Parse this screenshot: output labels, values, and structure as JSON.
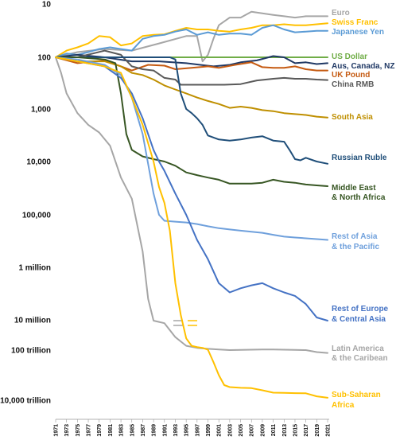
{
  "chart_data": {
    "type": "line",
    "title": "",
    "xlabel": "",
    "ylabel": "",
    "yscale": "log-inverted",
    "grid": false,
    "legend": "direct labels at right end of each line",
    "x_ticks": [
      "1971",
      "1973",
      "1975",
      "1977",
      "1979",
      "1981",
      "1983",
      "1985",
      "1987",
      "1989",
      "1991",
      "1993",
      "1995",
      "1997",
      "1999",
      "2001",
      "2003",
      "2005",
      "2007",
      "2009",
      "2011",
      "2013",
      "2015",
      "2017",
      "2019",
      "2021"
    ],
    "y_ticks": [
      {
        "label": "10",
        "value": 10
      },
      {
        "label": "100",
        "value": 100
      },
      {
        "label": "1,000",
        "value": 1000
      },
      {
        "label": "10,000",
        "value": 10000
      },
      {
        "label": "100,000",
        "value": 100000
      },
      {
        "label": "1 million",
        "value": 1000000
      },
      {
        "label": "10 million",
        "value": 10000000
      },
      {
        "label": "100 trillion",
        "value": 100000000000000.0
      },
      {
        "label": "10,000 trillion",
        "value": 1e+16
      }
    ],
    "axis_break_between": [
      "10 million",
      "100 trillion"
    ],
    "series": [
      {
        "name": "Euro",
        "color": "#a6a6a6",
        "x": [
          1971,
          1975,
          1980,
          1985,
          1990,
          1995,
          1997,
          1998,
          1999,
          2000,
          2001,
          2003,
          2005,
          2007,
          2009,
          2011,
          2013,
          2015,
          2017,
          2019,
          2021
        ],
        "y": [
          100,
          80,
          70,
          75,
          55,
          40,
          40,
          120,
          90,
          45,
          25,
          18,
          18,
          14,
          15,
          16,
          17,
          18,
          17,
          17,
          17
        ]
      },
      {
        "name": "Swiss Franc",
        "color": "#ffc000",
        "x": [
          1971,
          1973,
          1975,
          1977,
          1979,
          1981,
          1983,
          1985,
          1987,
          1989,
          1991,
          1993,
          1995,
          1997,
          1999,
          2001,
          2003,
          2005,
          2007,
          2009,
          2011,
          2013,
          2015,
          2017,
          2019,
          2021
        ],
        "y": [
          100,
          75,
          65,
          55,
          40,
          42,
          60,
          55,
          40,
          38,
          37,
          32,
          28,
          30,
          30,
          32,
          33,
          30,
          28,
          25,
          25,
          24,
          25,
          25,
          24,
          23
        ]
      },
      {
        "name": "Japanese Yen",
        "color": "#5b9bd5",
        "x": [
          1971,
          1973,
          1975,
          1977,
          1979,
          1981,
          1983,
          1985,
          1987,
          1989,
          1991,
          1993,
          1995,
          1997,
          1999,
          2001,
          2003,
          2005,
          2007,
          2009,
          2011,
          2013,
          2015,
          2017,
          2019,
          2021
        ],
        "y": [
          100,
          85,
          90,
          80,
          70,
          65,
          70,
          75,
          45,
          40,
          38,
          33,
          30,
          38,
          34,
          38,
          36,
          36,
          38,
          28,
          25,
          30,
          34,
          33,
          32,
          32
        ]
      },
      {
        "name": "US Dollar",
        "color": "#70ad47",
        "x": [
          1971,
          2021
        ],
        "y": [
          100,
          100
        ]
      },
      {
        "name": "Aus, Canada, NZ",
        "color": "#1f3864",
        "x": [
          1971,
          1975,
          1980,
          1985,
          1990,
          1995,
          2000,
          2003,
          2005,
          2008,
          2011,
          2013,
          2015,
          2017,
          2019,
          2021
        ],
        "y": [
          100,
          90,
          100,
          120,
          120,
          130,
          150,
          140,
          125,
          115,
          95,
          100,
          130,
          125,
          135,
          130
        ]
      },
      {
        "name": "UK Pound",
        "color": "#c55a11",
        "x": [
          1971,
          1975,
          1980,
          1983,
          1985,
          1988,
          1991,
          1993,
          1996,
          1999,
          2001,
          2004,
          2007,
          2009,
          2011,
          2013,
          2015,
          2017,
          2019,
          2021
        ],
        "y": [
          100,
          130,
          115,
          150,
          180,
          140,
          145,
          170,
          160,
          150,
          160,
          140,
          125,
          155,
          160,
          160,
          150,
          170,
          180,
          180
        ]
      },
      {
        "name": "China RMB",
        "color": "#595959",
        "x": [
          1971,
          1975,
          1980,
          1983,
          1985,
          1987,
          1989,
          1991,
          1993,
          1994,
          1996,
          1999,
          2002,
          2005,
          2008,
          2011,
          2013,
          2015,
          2017,
          2019,
          2021
        ],
        "y": [
          100,
          100,
          75,
          90,
          150,
          170,
          180,
          250,
          270,
          340,
          340,
          340,
          340,
          330,
          280,
          260,
          250,
          260,
          260,
          270,
          275
        ]
      },
      {
        "name": "South Asia",
        "color": "#bf8f00",
        "x": [
          1971,
          1975,
          1980,
          1983,
          1985,
          1987,
          1989,
          1991,
          1993,
          1995,
          1997,
          1999,
          2001,
          2003,
          2005,
          2007,
          2009,
          2011,
          2013,
          2015,
          2017,
          2019,
          2021
        ],
        "y": [
          100,
          120,
          120,
          150,
          200,
          220,
          270,
          350,
          420,
          500,
          600,
          700,
          800,
          950,
          900,
          950,
          1050,
          1100,
          1200,
          1250,
          1300,
          1400,
          1450
        ]
      },
      {
        "name": "Russian Ruble",
        "color": "#1f4e79",
        "x": [
          1971,
          1975,
          1980,
          1985,
          1990,
          1992,
          1993,
          1994,
          1995,
          1996,
          1997,
          1998,
          1999,
          2001,
          2003,
          2005,
          2007,
          2009,
          2011,
          2013,
          2014,
          2015,
          2016,
          2017,
          2019,
          2021
        ],
        "y": [
          100,
          100,
          100,
          100,
          100,
          100,
          110,
          500,
          1000,
          1200,
          1500,
          2000,
          3200,
          3800,
          4000,
          3800,
          3500,
          3300,
          4000,
          4200,
          6000,
          9000,
          9500,
          8500,
          10000,
          11000
        ]
      },
      {
        "name": "Middle East & North Africa",
        "color": "#375623",
        "x": [
          1971,
          1975,
          1980,
          1982,
          1983,
          1984,
          1985,
          1987,
          1989,
          1991,
          1993,
          1995,
          1997,
          1999,
          2001,
          2003,
          2005,
          2007,
          2009,
          2011,
          2013,
          2015,
          2017,
          2019,
          2021
        ],
        "y": [
          100,
          100,
          110,
          130,
          500,
          3000,
          6000,
          8000,
          9000,
          10000,
          12000,
          16000,
          18000,
          20000,
          22000,
          26000,
          26000,
          26000,
          25000,
          22000,
          24000,
          25000,
          27000,
          28000,
          29000
        ]
      },
      {
        "name": "Rest of Asia & the Pacific",
        "color": "#6fa0dc",
        "x": [
          1971,
          1975,
          1980,
          1983,
          1985,
          1987,
          1989,
          1990,
          1991,
          1993,
          1995,
          1997,
          1999,
          2001,
          2003,
          2005,
          2007,
          2009,
          2011,
          2013,
          2015,
          2017,
          2019,
          2021
        ],
        "y": [
          100,
          110,
          140,
          220,
          600,
          3000,
          40000,
          100000,
          130000,
          135000,
          140000,
          150000,
          165000,
          180000,
          190000,
          200000,
          210000,
          220000,
          240000,
          260000,
          270000,
          280000,
          290000,
          300000
        ]
      },
      {
        "name": "Rest of Europe & Central Asia",
        "color": "#4472c4",
        "x": [
          1971,
          1975,
          1980,
          1983,
          1985,
          1987,
          1989,
          1990,
          1991,
          1993,
          1995,
          1997,
          1999,
          2001,
          2003,
          2005,
          2007,
          2009,
          2011,
          2013,
          2015,
          2017,
          2019,
          2021
        ],
        "y": [
          100,
          120,
          150,
          250,
          500,
          1500,
          6000,
          10000,
          15000,
          40000,
          100000,
          300000,
          700000,
          2000000,
          3000000,
          2500000,
          2200000,
          2000000,
          2500000,
          3000000,
          3500000,
          5000000,
          9000000,
          15000000
        ]
      },
      {
        "name": "Latin America & the Caribean",
        "color": "#a6a6a6",
        "x": [
          1971,
          1972,
          1973,
          1975,
          1977,
          1979,
          1981,
          1983,
          1985,
          1987,
          1988,
          1989,
          1990,
          1991,
          1993,
          1994,
          1995,
          1997,
          1999,
          2001,
          2003,
          2005,
          2007,
          2009,
          2011,
          2013,
          2015,
          2017,
          2019,
          2021
        ],
        "y": [
          100,
          200,
          500,
          1200,
          2000,
          2800,
          5000,
          20000,
          50000,
          500000,
          4000000,
          15000000,
          30000000,
          60000000,
          100000000000.0,
          1000000000000.0,
          10000000000000.0,
          30000000000000.0,
          50000000000000.0,
          70000000000000.0,
          100000000000000.0,
          90000000000000.0,
          80000000000000.0,
          70000000000000.0,
          70000000000000.0,
          80000000000000.0,
          90000000000000.0,
          100000000000000.0,
          120000000000000.0,
          130000000000000.0
        ]
      },
      {
        "name": "Sub-Saharan Africa",
        "color": "#ffc000",
        "x": [
          1971,
          1975,
          1980,
          1983,
          1985,
          1987,
          1989,
          1990,
          1991,
          1992,
          1993,
          1994,
          1995,
          1996,
          1997,
          1998,
          1999,
          2000,
          2001,
          2002,
          2003,
          2005,
          2007,
          2009,
          2011,
          2013,
          2015,
          2017,
          2019,
          2021
        ],
        "y": [
          100,
          120,
          150,
          200,
          600,
          2000,
          10000,
          30000,
          60000,
          200000,
          2000000,
          8000000,
          200000000000.0,
          10000000000000.0,
          20000000000000.0,
          30000000000000.0,
          80000000000000.0,
          300000000000000.0,
          1000000000000000.0,
          2500000000000000.0,
          3000000000000000.0,
          3200000000000000.0,
          3300000000000000.0,
          4000000000000000.0,
          5000000000000000.0,
          5100000000000000.0,
          5200000000000000.0,
          5300000000000000.0,
          7000000000000000.0,
          8000000000000000.0
        ]
      }
    ]
  }
}
